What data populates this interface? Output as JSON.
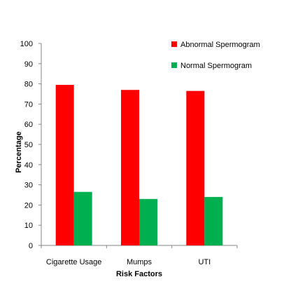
{
  "chart_data": {
    "type": "bar",
    "categories": [
      "Cigarette Usage",
      "Mumps",
      "UTI"
    ],
    "series": [
      {
        "name": "Abnormal Spermogram",
        "values": [
          79.5,
          77,
          76.5
        ],
        "color": "#ff0000"
      },
      {
        "name": "Normal Spermogram",
        "values": [
          26.5,
          23,
          24
        ],
        "color": "#00b050"
      }
    ],
    "title": "",
    "xlabel": "Risk Factors",
    "ylabel": "Percentage",
    "ylim": [
      0,
      100
    ],
    "yticks": [
      "0",
      "10",
      "20",
      "30",
      "40",
      "50",
      "60",
      "70",
      "80",
      "90",
      "100"
    ],
    "grid": false,
    "legend_position": "top-right"
  }
}
